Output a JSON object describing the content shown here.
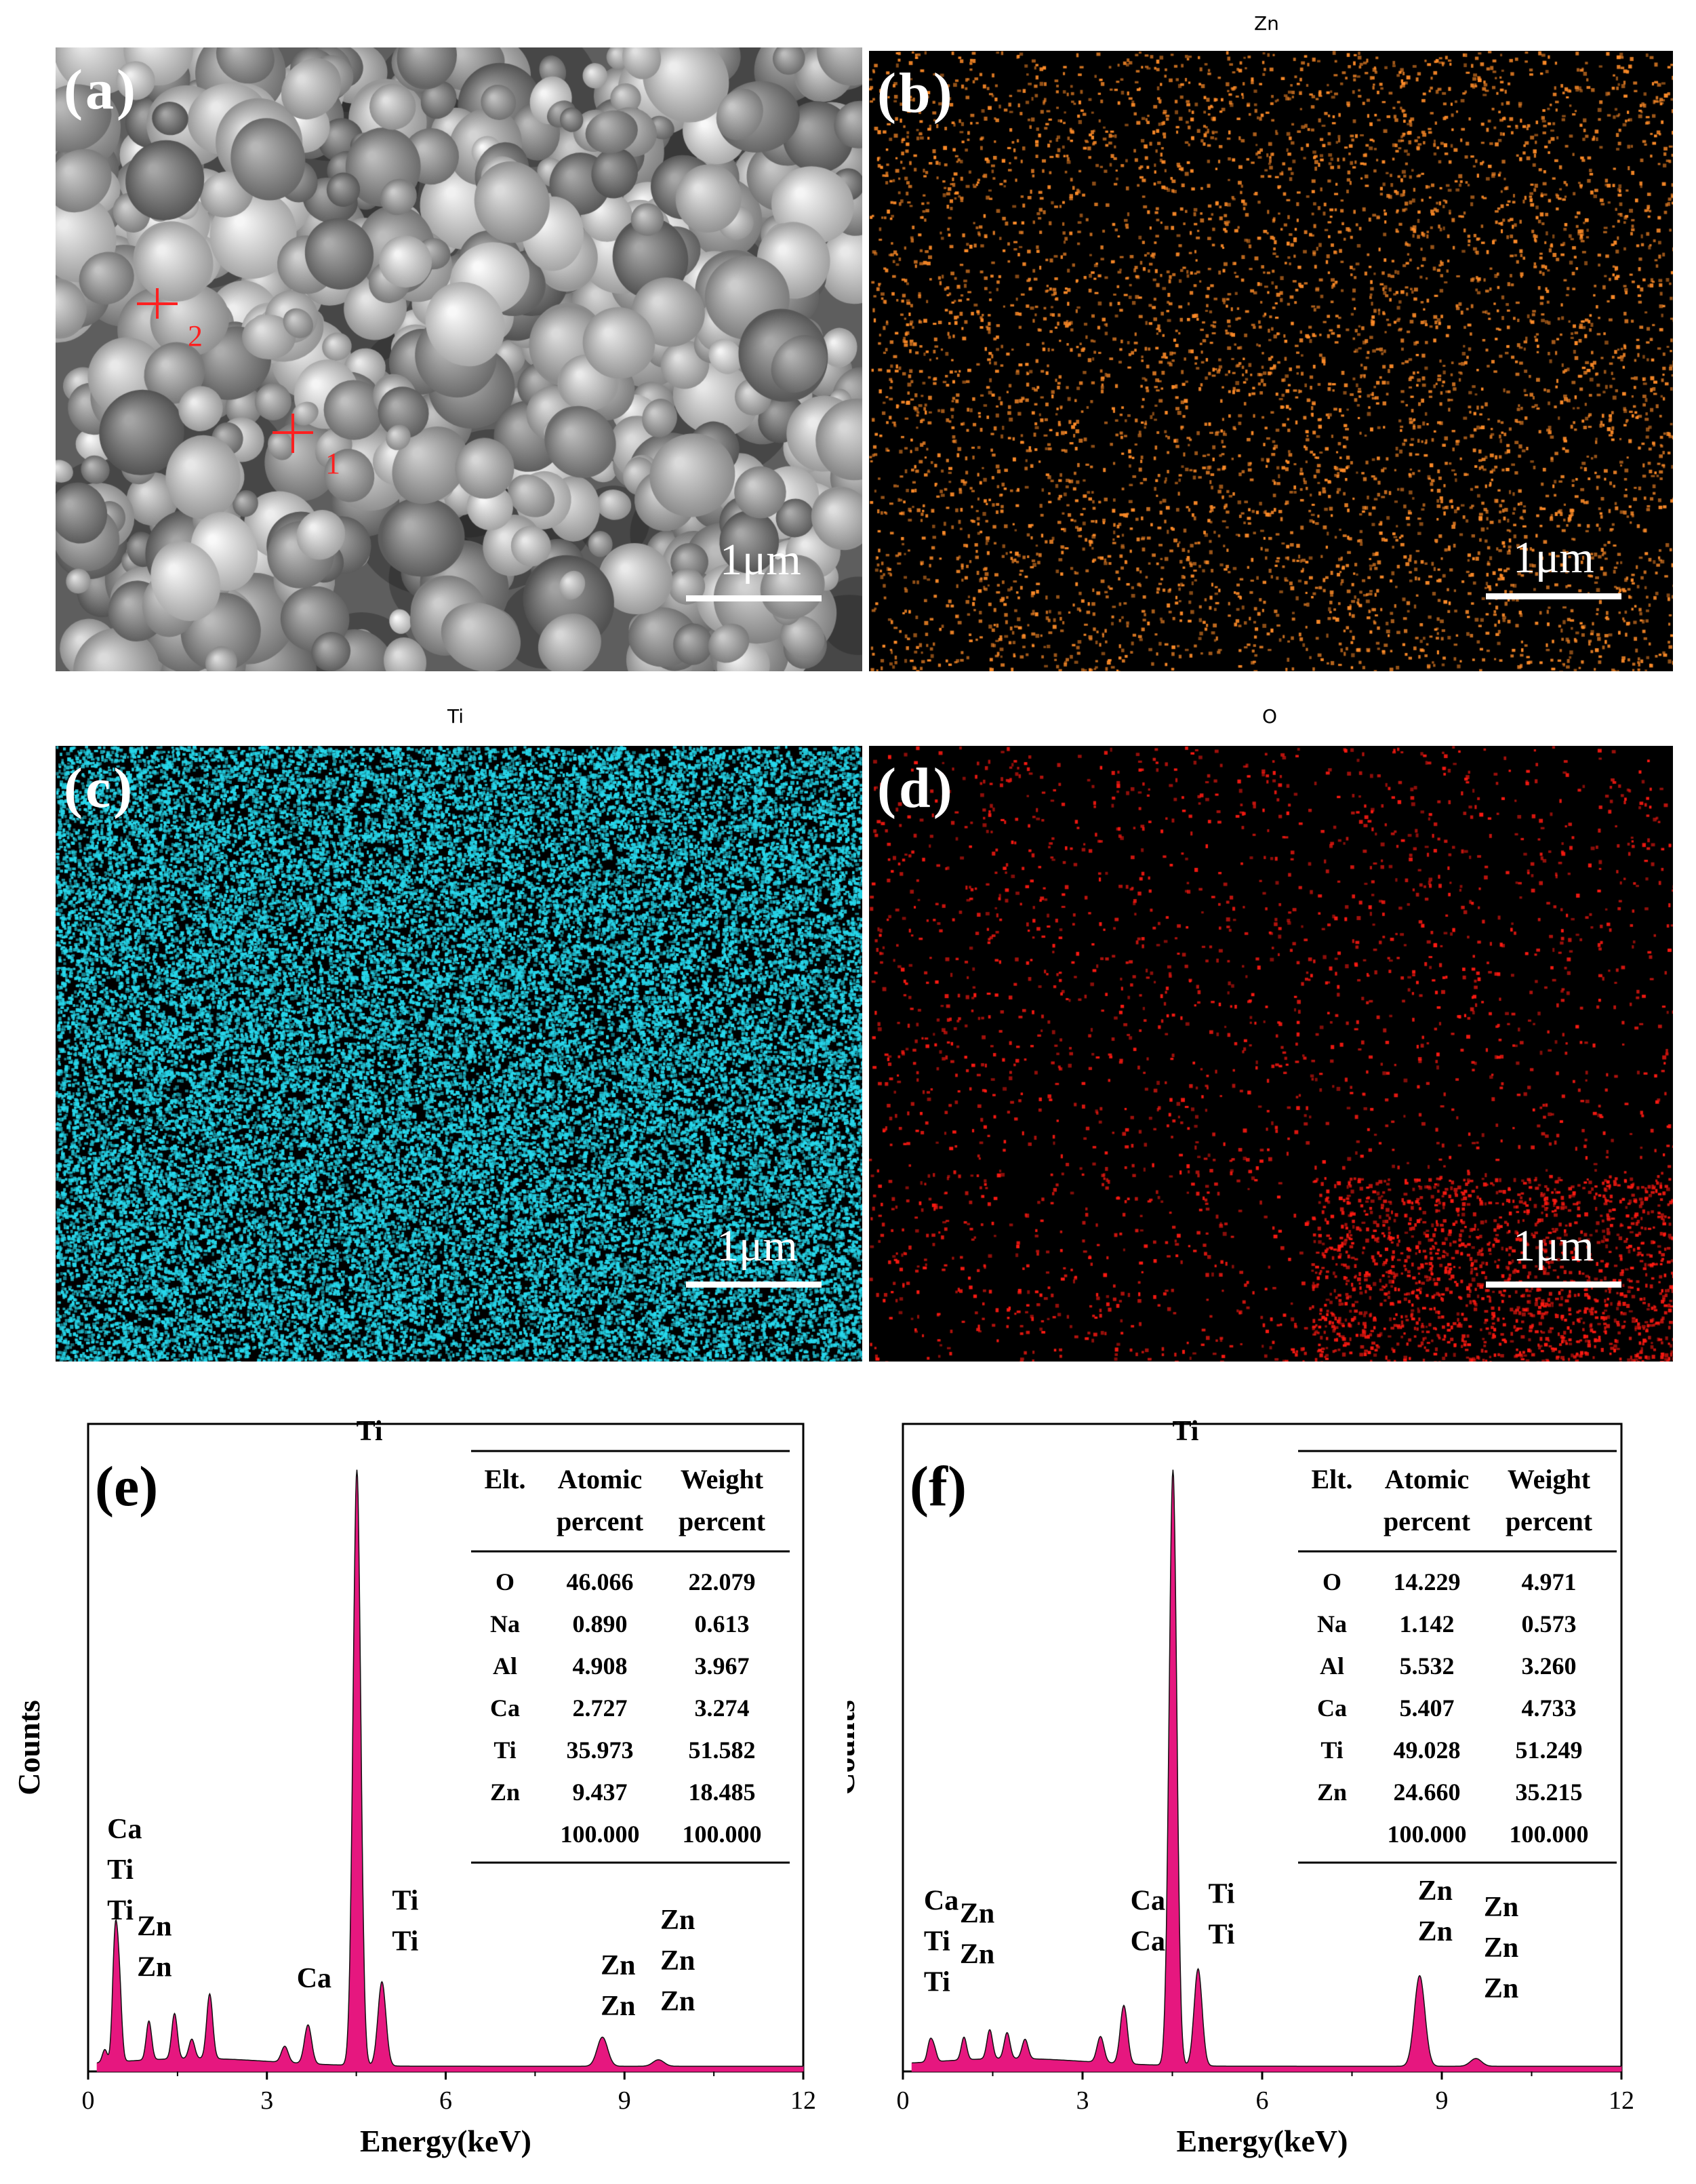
{
  "panels": {
    "a": {
      "label": "(a)",
      "scale": "1μm",
      "markers": [
        "1",
        "2"
      ]
    },
    "b": {
      "label": "(b)",
      "title": "Zn",
      "scale": "1μm",
      "color": "#ff8c28"
    },
    "c": {
      "label": "(c)",
      "title": "Ti",
      "scale": "1μm",
      "color": "#27d8ec"
    },
    "d": {
      "label": "(d)",
      "title": "O",
      "scale": "1μm",
      "color": "#ff1a12"
    }
  },
  "chart_data": [
    {
      "type": "line",
      "panel_label": "(e)",
      "xlabel": "Energy(keV)",
      "ylabel": "Counts",
      "xlim": [
        0,
        12
      ],
      "xticks": [
        0,
        3,
        6,
        9,
        12
      ],
      "fill_color": "#e6177f",
      "peaks": [
        {
          "x": 0.28,
          "y": 0.02
        },
        {
          "x": 0.45,
          "y": 0.18
        },
        {
          "x": 0.52,
          "y": 0.12
        },
        {
          "x": 1.02,
          "y": 0.06
        },
        {
          "x": 1.45,
          "y": 0.07
        },
        {
          "x": 1.74,
          "y": 0.03
        },
        {
          "x": 2.04,
          "y": 0.1
        },
        {
          "x": 3.3,
          "y": 0.025
        },
        {
          "x": 3.69,
          "y": 0.06
        },
        {
          "x": 4.51,
          "y": 0.92
        },
        {
          "x": 4.93,
          "y": 0.13
        },
        {
          "x": 8.63,
          "y": 0.045
        },
        {
          "x": 9.57,
          "y": 0.01
        }
      ],
      "annotations": [
        {
          "lines": [
            "Ca",
            "Ti",
            "Ti"
          ],
          "x": 0.32,
          "y": 0.36
        },
        {
          "lines": [
            "Zn",
            "Zn"
          ],
          "x": 0.82,
          "y": 0.21
        },
        {
          "lines": [
            "Ca"
          ],
          "x": 3.5,
          "y": 0.13
        },
        {
          "lines": [
            "Ti"
          ],
          "x": 4.5,
          "y": 0.975
        },
        {
          "lines": [
            "Ti",
            "Ti"
          ],
          "x": 5.1,
          "y": 0.25
        },
        {
          "lines": [
            "Zn",
            "Zn"
          ],
          "x": 8.6,
          "y": 0.15
        },
        {
          "lines": [
            "Zn",
            "Zn",
            "Zn"
          ],
          "x": 9.6,
          "y": 0.22
        }
      ],
      "table": {
        "headers": [
          [
            "Elt.",
            ""
          ],
          [
            "Atomic",
            "percent"
          ],
          [
            "Weight",
            "percent"
          ]
        ],
        "rows": [
          [
            "O",
            "46.066",
            "22.079"
          ],
          [
            "Na",
            "0.890",
            "0.613"
          ],
          [
            "Al",
            "4.908",
            "3.967"
          ],
          [
            "Ca",
            "2.727",
            "3.274"
          ],
          [
            "Ti",
            "35.973",
            "51.582"
          ],
          [
            "Zn",
            "9.437",
            "18.485"
          ],
          [
            "",
            "100.000",
            "100.000"
          ]
        ]
      }
    },
    {
      "type": "line",
      "panel_label": "(f)",
      "xlabel": "Energy(keV)",
      "ylabel": "Counts",
      "xlim": [
        0,
        12
      ],
      "xticks": [
        0,
        3,
        6,
        9,
        12
      ],
      "fill_color": "#e6177f",
      "peaks": [
        {
          "x": 0.45,
          "y": 0.03
        },
        {
          "x": 0.52,
          "y": 0.02
        },
        {
          "x": 1.02,
          "y": 0.035
        },
        {
          "x": 1.45,
          "y": 0.045
        },
        {
          "x": 1.74,
          "y": 0.04
        },
        {
          "x": 2.04,
          "y": 0.03
        },
        {
          "x": 3.3,
          "y": 0.04
        },
        {
          "x": 3.69,
          "y": 0.09
        },
        {
          "x": 4.51,
          "y": 0.92
        },
        {
          "x": 4.93,
          "y": 0.15
        },
        {
          "x": 8.63,
          "y": 0.14
        },
        {
          "x": 9.57,
          "y": 0.012
        }
      ],
      "annotations": [
        {
          "lines": [
            "Ca",
            "Ti",
            "Ti"
          ],
          "x": 0.35,
          "y": 0.25
        },
        {
          "lines": [
            "Zn",
            "Zn"
          ],
          "x": 0.95,
          "y": 0.23
        },
        {
          "lines": [
            "Ca",
            "Ca"
          ],
          "x": 3.8,
          "y": 0.25
        },
        {
          "lines": [
            "Ti"
          ],
          "x": 4.5,
          "y": 0.975
        },
        {
          "lines": [
            "Ti",
            "Ti"
          ],
          "x": 5.1,
          "y": 0.26
        },
        {
          "lines": [
            "Zn",
            "Zn"
          ],
          "x": 8.6,
          "y": 0.265
        },
        {
          "lines": [
            "Zn",
            "Zn",
            "Zn"
          ],
          "x": 9.7,
          "y": 0.24
        }
      ],
      "table": {
        "headers": [
          [
            "Elt.",
            ""
          ],
          [
            "Atomic",
            "percent"
          ],
          [
            "Weight",
            "percent"
          ]
        ],
        "rows": [
          [
            "O",
            "14.229",
            "4.971"
          ],
          [
            "Na",
            "1.142",
            "0.573"
          ],
          [
            "Al",
            "5.532",
            "3.260"
          ],
          [
            "Ca",
            "5.407",
            "4.733"
          ],
          [
            "Ti",
            "49.028",
            "51.249"
          ],
          [
            "Zn",
            "24.660",
            "35.215"
          ],
          [
            "",
            "100.000",
            "100.000"
          ]
        ]
      }
    }
  ]
}
